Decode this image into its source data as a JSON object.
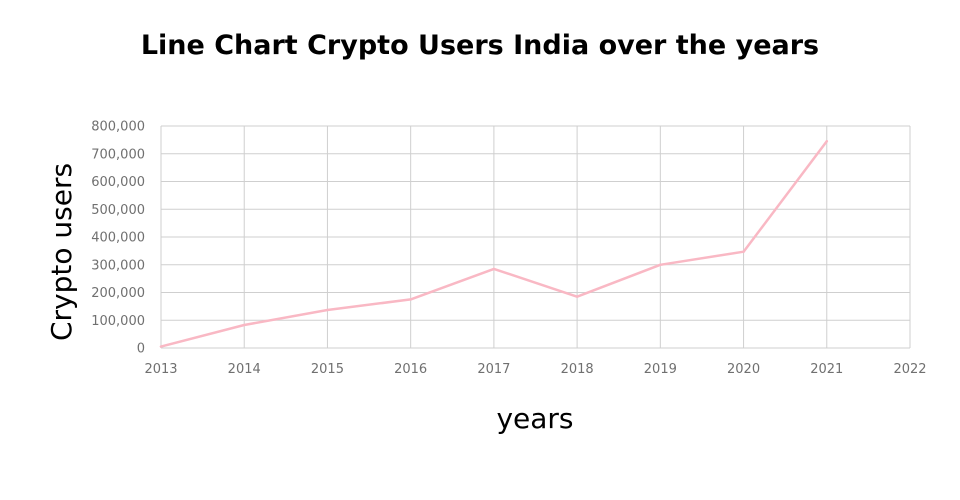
{
  "chart_data": {
    "type": "line",
    "title": "Line Chart Crypto Users India over the years",
    "xlabel": "years",
    "ylabel": "Crypto users",
    "xlim": [
      2013,
      2022
    ],
    "ylim": [
      0,
      800000
    ],
    "x_ticks": [
      2013,
      2014,
      2015,
      2016,
      2017,
      2018,
      2019,
      2020,
      2021,
      2022
    ],
    "x_tick_labels": [
      "2013",
      "2014",
      "2015",
      "2016",
      "2017",
      "2018",
      "2019",
      "2020",
      "2021",
      "2022"
    ],
    "y_ticks": [
      0,
      100000,
      200000,
      300000,
      400000,
      500000,
      600000,
      700000,
      800000
    ],
    "y_tick_labels": [
      "0",
      "100,000",
      "200,000",
      "300,000",
      "400,000",
      "500,000",
      "600,000",
      "700,000",
      "800,000"
    ],
    "grid": true,
    "legend": "none",
    "series": [
      {
        "name": "Crypto users",
        "color": "#f9b8c4",
        "x": [
          2013,
          2014,
          2015,
          2016,
          2017,
          2018,
          2019,
          2020,
          2021
        ],
        "values": [
          5000,
          83000,
          137000,
          175000,
          285000,
          185000,
          300000,
          347000,
          745000
        ]
      }
    ]
  }
}
